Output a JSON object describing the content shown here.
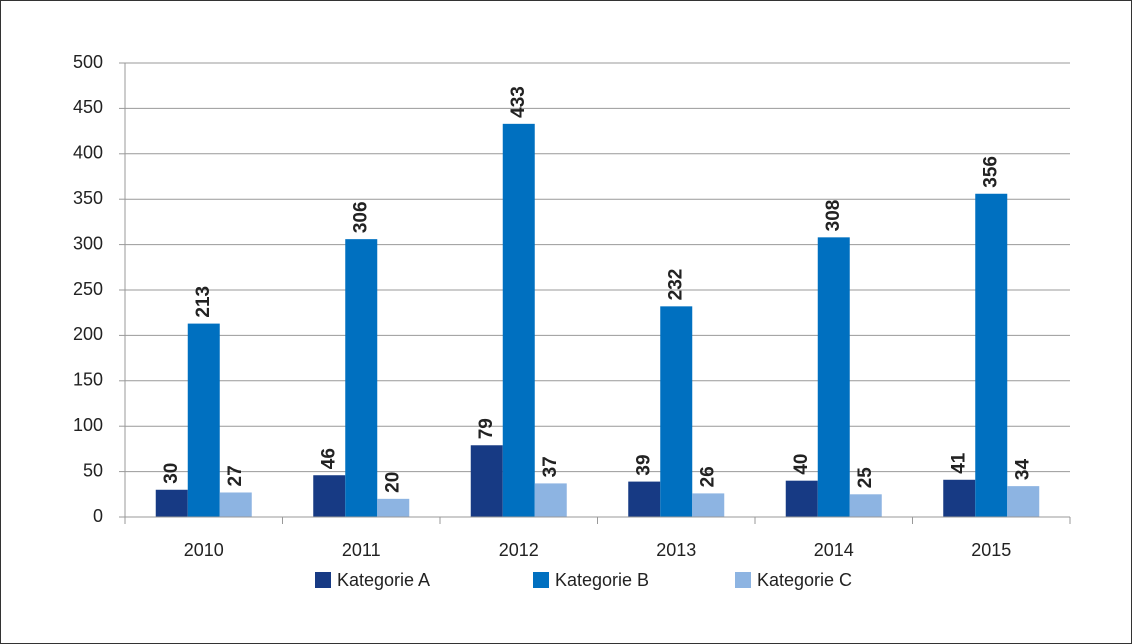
{
  "chart_data": {
    "type": "bar",
    "categories": [
      "2010",
      "2011",
      "2012",
      "2013",
      "2014",
      "2015"
    ],
    "series": [
      {
        "name": "Kategorie A",
        "color": "#173a84",
        "values": [
          30,
          46,
          79,
          39,
          40,
          41
        ]
      },
      {
        "name": "Kategorie B",
        "color": "#0070c0",
        "values": [
          213,
          306,
          433,
          232,
          308,
          356
        ]
      },
      {
        "name": "Kategorie C",
        "color": "#8db4e2",
        "values": [
          27,
          20,
          37,
          26,
          25,
          34
        ]
      }
    ],
    "ylim": [
      0,
      500
    ],
    "yticks": [
      0,
      50,
      100,
      150,
      200,
      250,
      300,
      350,
      400,
      450,
      500
    ],
    "grid": true,
    "legend": "bottom"
  }
}
